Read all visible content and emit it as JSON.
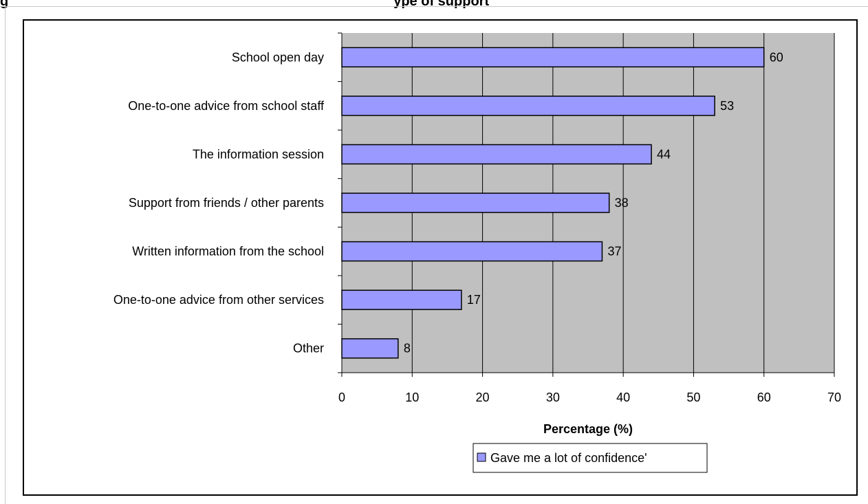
{
  "figure_title": "g",
  "figure_title_suffix": "ype of support",
  "chart_data": {
    "type": "bar",
    "orientation": "horizontal",
    "categories": [
      "School open day",
      "One-to-one advice from school staff",
      "The information session",
      "Support from friends / other parents",
      "Written information from the school",
      "One-to-one advice from other services",
      "Other"
    ],
    "series": [
      {
        "name": "Gave me a lot of confidence'",
        "values": [
          60,
          53,
          44,
          38,
          37,
          17,
          8
        ]
      }
    ],
    "xlabel": "Percentage (%)",
    "ylabel": "",
    "xlim": [
      0,
      70
    ],
    "xticks": [
      0,
      10,
      20,
      30,
      40,
      50,
      60,
      70
    ],
    "grid": true,
    "legend_position": "bottom",
    "data_labels": true,
    "colors": {
      "bar_fill": "#9999ff",
      "bar_stroke": "#000000",
      "plot_background": "#c0c0c0",
      "gridline": "#000000"
    }
  }
}
